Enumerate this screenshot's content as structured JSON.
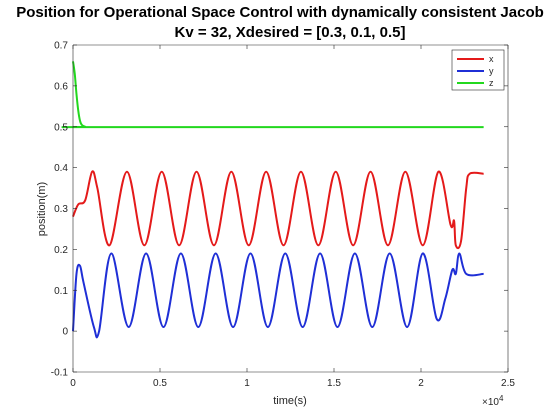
{
  "chart_data": {
    "type": "line",
    "title": "Position for Operational Space Control with dynamically consistent Jacob",
    "subtitle": "Kv = 32, Xdesired = [0.3, 0.1, 0.5]",
    "xlabel": "time(s)",
    "ylabel": "position(m)",
    "x_exponent_label": "×10",
    "x_exponent": "4",
    "xlim": [
      0,
      25000
    ],
    "ylim": [
      -0.1,
      0.7
    ],
    "xticks": [
      0,
      5000,
      10000,
      15000,
      20000,
      25000
    ],
    "xtick_labels": [
      "0",
      "0.5",
      "1",
      "1.5",
      "2",
      "2.5"
    ],
    "yticks": [
      -0.1,
      0,
      0.1,
      0.2,
      0.3,
      0.4,
      0.5,
      0.6,
      0.7
    ],
    "ytick_labels": [
      "-0.1",
      "0",
      "0.1",
      "0.2",
      "0.3",
      "0.4",
      "0.5",
      "0.6",
      "0.7"
    ],
    "grid": false,
    "legend_position": "top-right",
    "series": [
      {
        "name": "x",
        "color": "#e41a1a",
        "points": [
          [
            0,
            0.28
          ],
          [
            300,
            0.31
          ],
          [
            700,
            0.32
          ],
          [
            1100,
            0.39
          ],
          [
            1400,
            0.35
          ],
          [
            2100,
            0.21
          ],
          [
            3100,
            0.39
          ],
          [
            4100,
            0.21
          ],
          [
            5100,
            0.39
          ],
          [
            6100,
            0.21
          ],
          [
            7100,
            0.39
          ],
          [
            8100,
            0.21
          ],
          [
            9100,
            0.39
          ],
          [
            10100,
            0.21
          ],
          [
            11100,
            0.39
          ],
          [
            12100,
            0.21
          ],
          [
            13100,
            0.39
          ],
          [
            14100,
            0.21
          ],
          [
            15100,
            0.39
          ],
          [
            16100,
            0.21
          ],
          [
            17100,
            0.39
          ],
          [
            18100,
            0.21
          ],
          [
            19100,
            0.39
          ],
          [
            20100,
            0.21
          ],
          [
            21000,
            0.39
          ],
          [
            21700,
            0.26
          ],
          [
            21900,
            0.27
          ],
          [
            22000,
            0.21
          ],
          [
            22300,
            0.22
          ],
          [
            22600,
            0.35
          ],
          [
            22800,
            0.385
          ],
          [
            23600,
            0.385
          ]
        ]
      },
      {
        "name": "y",
        "color": "#1f2fd6",
        "points": [
          [
            0,
            0
          ],
          [
            200,
            0.14
          ],
          [
            400,
            0.16
          ],
          [
            600,
            0.12
          ],
          [
            1200,
            0.01
          ],
          [
            1500,
            0
          ],
          [
            2200,
            0.19
          ],
          [
            3200,
            0.01
          ],
          [
            4200,
            0.19
          ],
          [
            5200,
            0.01
          ],
          [
            6200,
            0.19
          ],
          [
            7200,
            0.01
          ],
          [
            8200,
            0.19
          ],
          [
            9200,
            0.01
          ],
          [
            10200,
            0.19
          ],
          [
            11200,
            0.01
          ],
          [
            12200,
            0.19
          ],
          [
            13200,
            0.01
          ],
          [
            14200,
            0.19
          ],
          [
            15200,
            0.01
          ],
          [
            16200,
            0.19
          ],
          [
            17200,
            0.01
          ],
          [
            18200,
            0.19
          ],
          [
            19200,
            0.01
          ],
          [
            20100,
            0.19
          ],
          [
            20900,
            0.03
          ],
          [
            21400,
            0.08
          ],
          [
            21800,
            0.15
          ],
          [
            22000,
            0.14
          ],
          [
            22200,
            0.19
          ],
          [
            22600,
            0.14
          ],
          [
            23600,
            0.14
          ]
        ]
      },
      {
        "name": "z",
        "color": "#22d81e",
        "points": [
          [
            0,
            0.66
          ],
          [
            100,
            0.63
          ],
          [
            200,
            0.58
          ],
          [
            300,
            0.54
          ],
          [
            400,
            0.515
          ],
          [
            500,
            0.505
          ],
          [
            700,
            0.5
          ],
          [
            1200,
            0.499
          ],
          [
            23600,
            0.499
          ]
        ]
      }
    ]
  }
}
